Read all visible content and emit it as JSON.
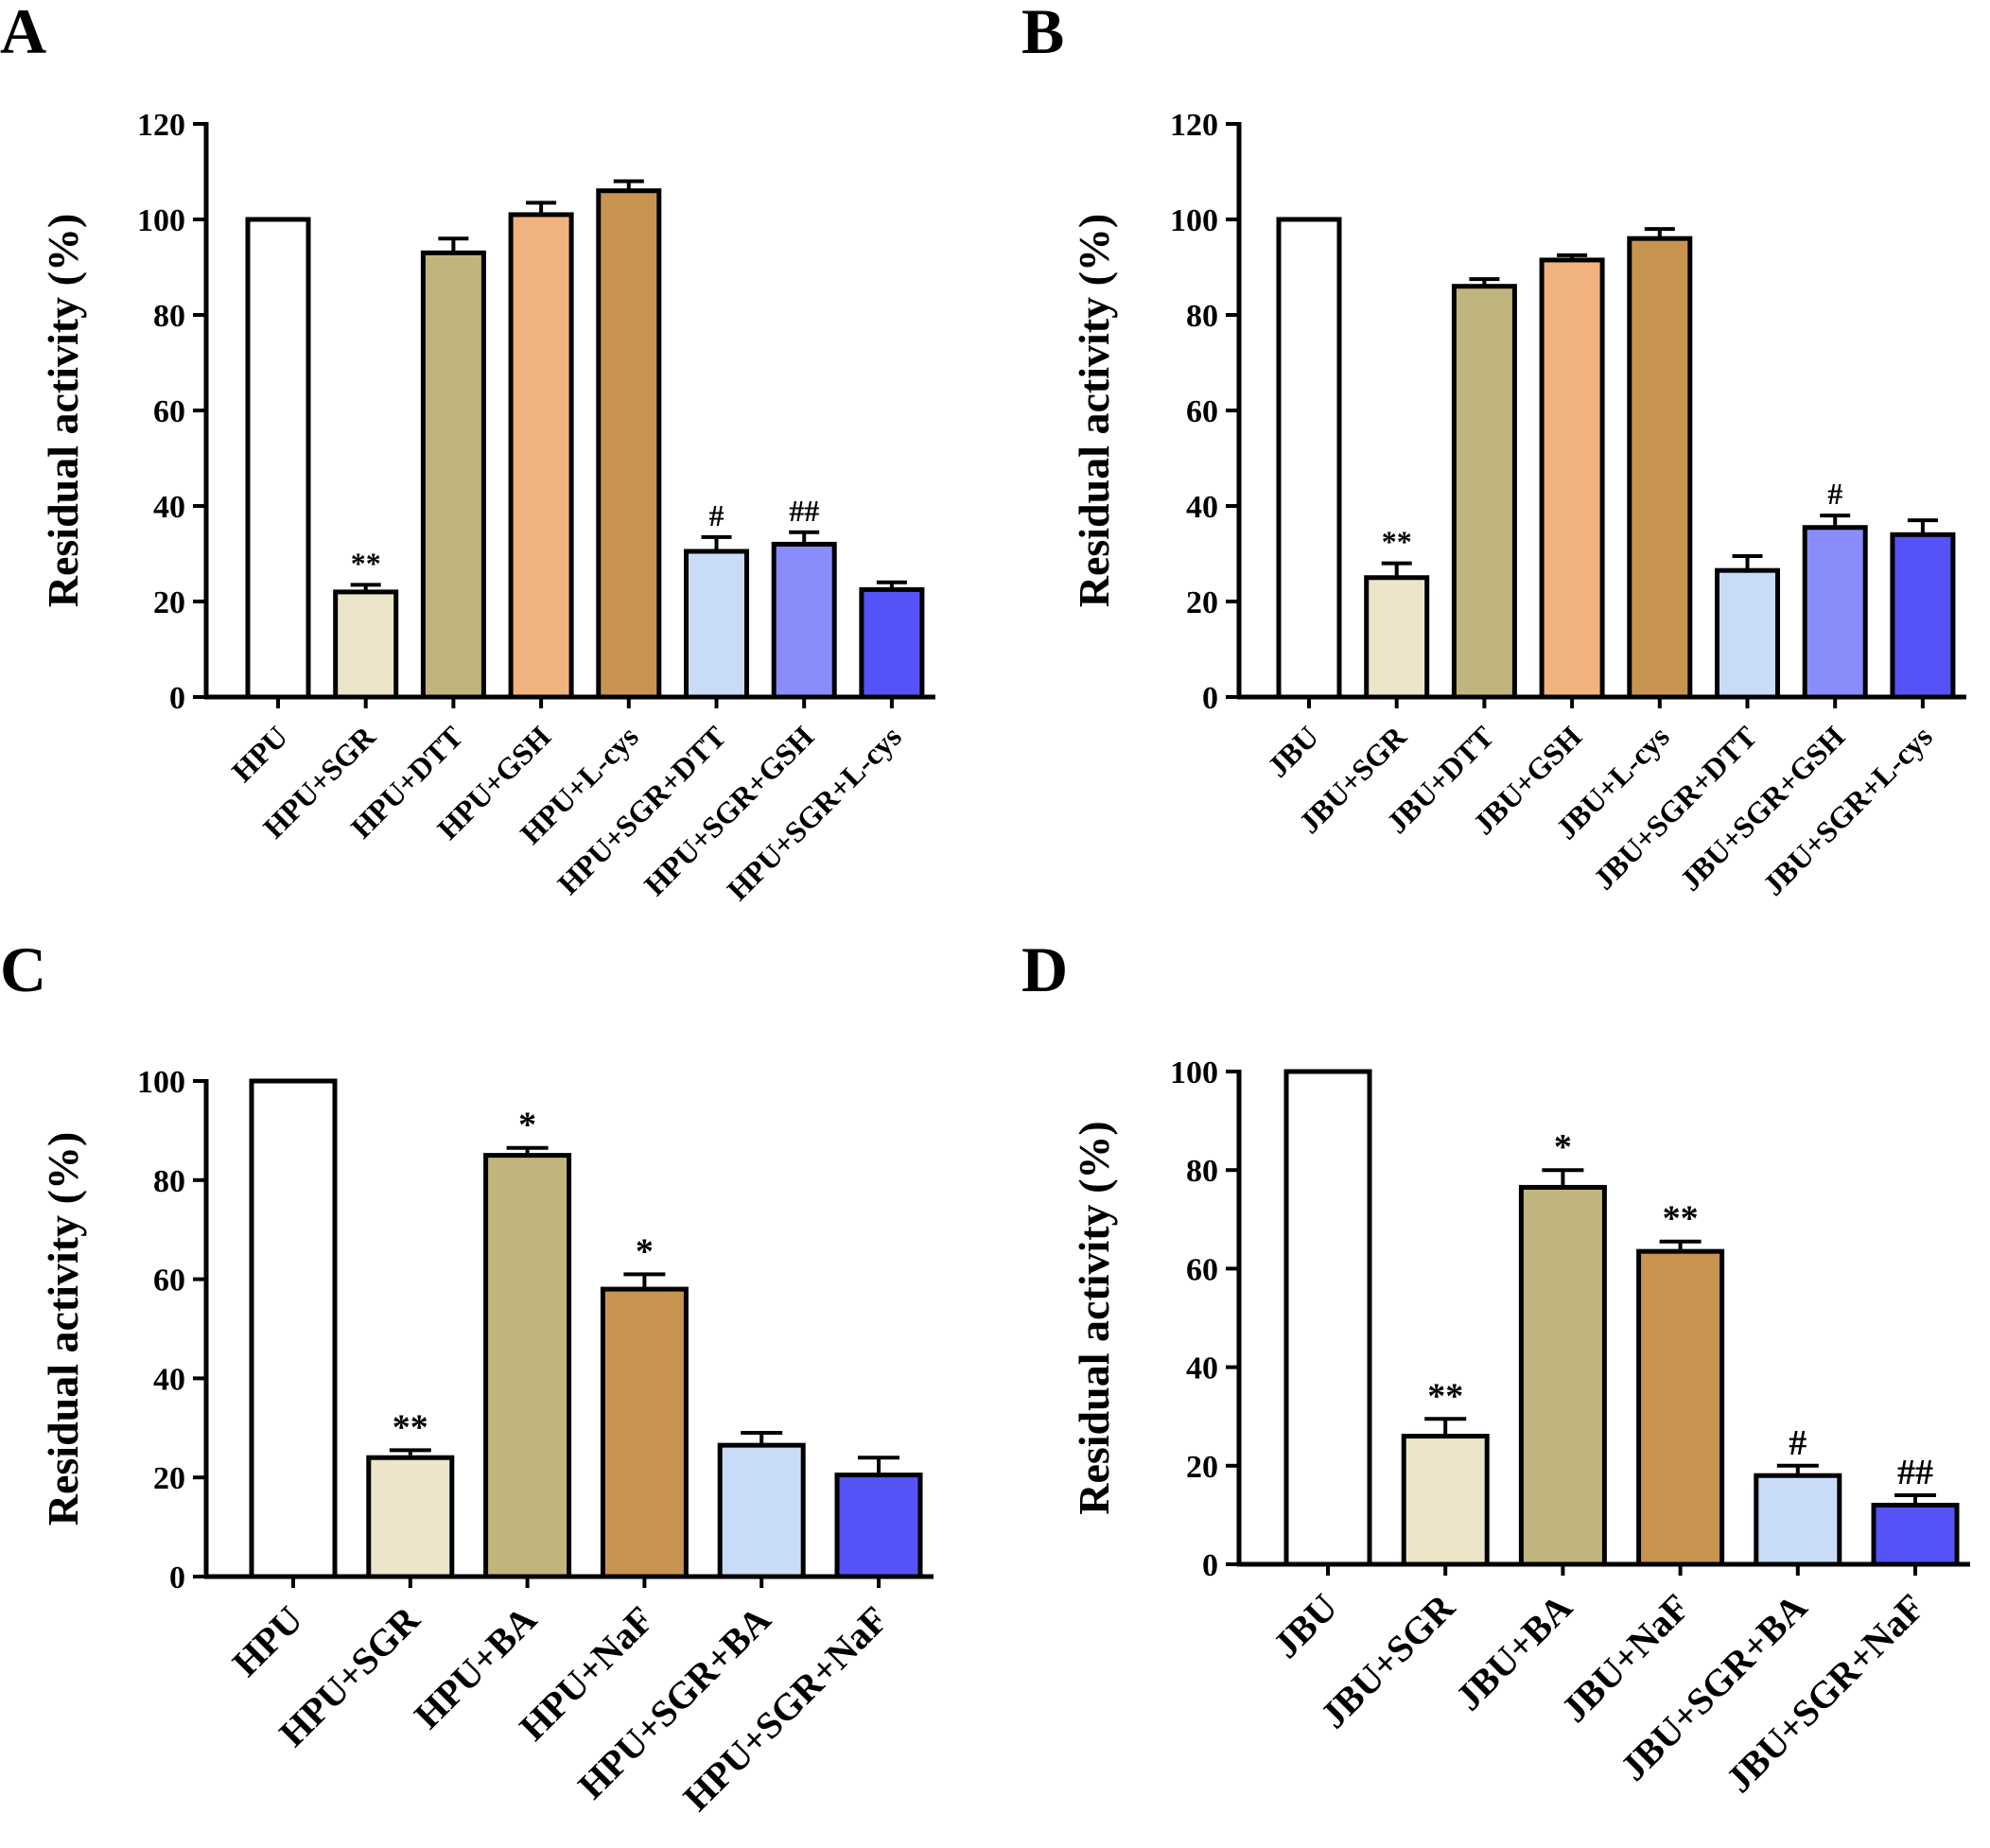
{
  "chart_data": [
    {
      "panel": "A",
      "type": "bar",
      "ylabel": "Residual activity (%)",
      "ylim": [
        0,
        120
      ],
      "yticks": [
        0,
        20,
        40,
        60,
        80,
        100,
        120
      ],
      "categories": [
        "HPU",
        "HPU+SGR",
        "HPU+DTT",
        "HPU+GSH",
        "HPU+L-cys",
        "HPU+SGR+DTT",
        "HPU+SGR+GSH",
        "HPU+SGR+L-cys"
      ],
      "values": [
        100,
        22,
        93,
        101,
        106,
        30.5,
        32,
        22.5
      ],
      "errors": [
        0,
        1.5,
        3,
        2.5,
        2,
        3,
        2.5,
        1.5
      ],
      "annotations": [
        "",
        "**",
        "",
        "",
        "",
        "#",
        "##",
        ""
      ],
      "colors": [
        "#ffffff",
        "#ece5c9",
        "#c0b57f",
        "#f0b27f",
        "#c7944f",
        "#c9dcf7",
        "#8b8cfb",
        "#5553f7"
      ]
    },
    {
      "panel": "B",
      "type": "bar",
      "ylabel": "Residual activity (%)",
      "ylim": [
        0,
        120
      ],
      "yticks": [
        0,
        20,
        40,
        60,
        80,
        100,
        120
      ],
      "categories": [
        "JBU",
        "JBU+SGR",
        "JBU+DTT",
        "JBU+GSH",
        "JBU+L-cys",
        "JBU+SGR+DTT",
        "JBU+SGR+GSH",
        "JBU+SGR+L-cys"
      ],
      "values": [
        100,
        25,
        86,
        91.5,
        96,
        26.5,
        35.5,
        34
      ],
      "errors": [
        0,
        3,
        1.5,
        1,
        2,
        3,
        2.5,
        3
      ],
      "annotations": [
        "",
        "**",
        "",
        "",
        "",
        "",
        "#",
        ""
      ],
      "colors": [
        "#ffffff",
        "#ece5c9",
        "#c0b57f",
        "#f0b27f",
        "#c7944f",
        "#c9dcf7",
        "#8b8cfb",
        "#5553f7"
      ]
    },
    {
      "panel": "C",
      "type": "bar",
      "ylabel": "Residual activity (%)",
      "ylim": [
        0,
        100
      ],
      "yticks": [
        0,
        20,
        40,
        60,
        80,
        100
      ],
      "categories": [
        "HPU",
        "HPU+SGR",
        "HPU+BA",
        "HPU+NaF",
        "HPU+SGR+BA",
        "HPU+SGR+NaF"
      ],
      "values": [
        100,
        24,
        85,
        58,
        26.5,
        20.5
      ],
      "errors": [
        0,
        1.5,
        1.5,
        3,
        2.5,
        3.5
      ],
      "annotations": [
        "",
        "**",
        "*",
        "*",
        "",
        ""
      ],
      "colors": [
        "#ffffff",
        "#ece5c9",
        "#c0b57f",
        "#c7944f",
        "#c9dcf7",
        "#5553f7"
      ]
    },
    {
      "panel": "D",
      "type": "bar",
      "ylabel": "Residual activity (%)",
      "ylim": [
        0,
        100
      ],
      "yticks": [
        0,
        20,
        40,
        60,
        80,
        100
      ],
      "categories": [
        "JBU",
        "JBU+SGR",
        "JBU+BA",
        "JBU+NaF",
        "JBU+SGR+BA",
        "JBU+SGR+NaF"
      ],
      "values": [
        100,
        26,
        76.5,
        63.5,
        18,
        12
      ],
      "errors": [
        0,
        3.5,
        3.5,
        2,
        2,
        2
      ],
      "annotations": [
        "",
        "**",
        "*",
        "**",
        "#",
        "##"
      ],
      "colors": [
        "#ffffff",
        "#ece5c9",
        "#c0b57f",
        "#c7944f",
        "#c9dcf7",
        "#5553f7"
      ]
    }
  ]
}
